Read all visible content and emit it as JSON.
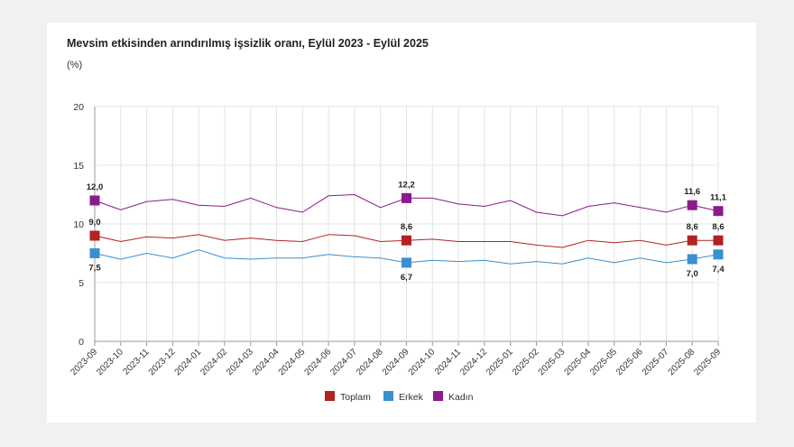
{
  "chart_data": {
    "type": "line",
    "title": "Mevsim etkisinden arındırılmış işsizlik oranı, Eylül 2023 - Eylül 2025",
    "ylabel": "(%)",
    "xlabel": "",
    "ylim": [
      0,
      20
    ],
    "yticks": [
      0,
      5,
      10,
      15,
      20
    ],
    "grid": true,
    "legend": "bottom-center",
    "categories": [
      "2023-09",
      "2023-10",
      "2023-11",
      "2023-12",
      "2024-01",
      "2024-02",
      "2024-03",
      "2024-04",
      "2024-05",
      "2024-06",
      "2024-07",
      "2024-08",
      "2024-09",
      "2024-10",
      "2024-11",
      "2024-12",
      "2025-01",
      "2025-02",
      "2025-03",
      "2025-04",
      "2025-05",
      "2025-06",
      "2025-07",
      "2025-08",
      "2025-09"
    ],
    "series": [
      {
        "name": "Toplam",
        "color": "#b22222",
        "values": [
          9.0,
          8.5,
          8.9,
          8.8,
          9.1,
          8.6,
          8.8,
          8.6,
          8.5,
          9.1,
          9.0,
          8.5,
          8.6,
          8.7,
          8.5,
          8.5,
          8.5,
          8.2,
          8.0,
          8.6,
          8.4,
          8.6,
          8.2,
          8.6,
          8.6
        ],
        "labels": [
          {
            "index": 0,
            "text": "9,0"
          },
          {
            "index": 12,
            "text": "8,6"
          },
          {
            "index": 23,
            "text": "8,6"
          },
          {
            "index": 24,
            "text": "8,6"
          }
        ]
      },
      {
        "name": "Erkek",
        "color": "#3a8fd0",
        "values": [
          7.5,
          7.0,
          7.5,
          7.1,
          7.8,
          7.1,
          7.0,
          7.1,
          7.1,
          7.4,
          7.2,
          7.1,
          6.7,
          6.9,
          6.8,
          6.9,
          6.6,
          6.8,
          6.6,
          7.1,
          6.7,
          7.1,
          6.7,
          7.0,
          7.4
        ],
        "labels": [
          {
            "index": 0,
            "text": "7,5"
          },
          {
            "index": 12,
            "text": "6,7"
          },
          {
            "index": 23,
            "text": "7,0"
          },
          {
            "index": 24,
            "text": "7,4"
          }
        ]
      },
      {
        "name": "Kadın",
        "color": "#8b1a8b",
        "values": [
          12.0,
          11.2,
          11.9,
          12.1,
          11.6,
          11.5,
          12.2,
          11.4,
          11.0,
          12.4,
          12.5,
          11.4,
          12.2,
          12.2,
          11.7,
          11.5,
          12.0,
          11.0,
          10.7,
          11.5,
          11.8,
          11.4,
          11.0,
          11.6,
          11.1
        ],
        "labels": [
          {
            "index": 0,
            "text": "12,0"
          },
          {
            "index": 12,
            "text": "12,2"
          },
          {
            "index": 23,
            "text": "11,6"
          },
          {
            "index": 24,
            "text": "11,1"
          }
        ]
      }
    ]
  }
}
